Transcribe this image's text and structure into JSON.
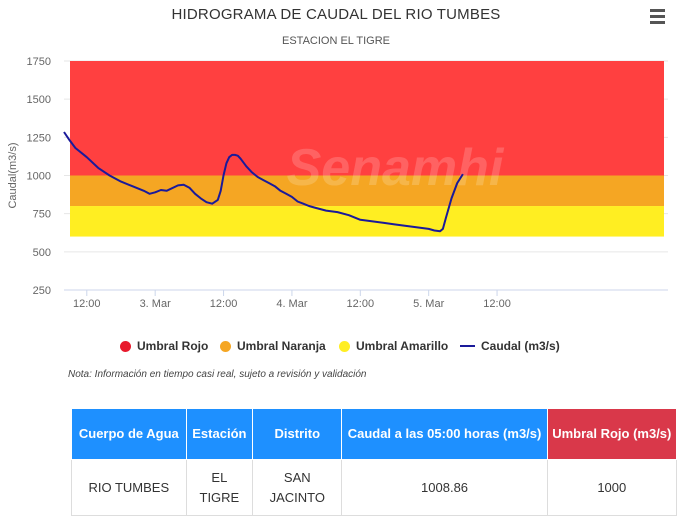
{
  "chart_data": {
    "type": "line",
    "title": "HIDROGRAMA DE CAUDAL DEL RIO TUMBES",
    "subtitle": "ESTACION EL TIGRE",
    "ylabel": "Caudal(m3/s)",
    "xlabel": "",
    "ylim": [
      250,
      1750
    ],
    "yticks": [
      250,
      500,
      750,
      1000,
      1250,
      1500,
      1750
    ],
    "x_tick_labels": [
      "12:00",
      "3. Mar",
      "12:00",
      "4. Mar",
      "12:00",
      "5. Mar",
      "12:00"
    ],
    "x_tick_hours": [
      12,
      24,
      36,
      48,
      60,
      72,
      84
    ],
    "xlim_hours": [
      8,
      114
    ],
    "grid": true,
    "legend_position": "bottom",
    "thresholds": [
      {
        "name": "Umbral Rojo",
        "from": 1000,
        "to": 1750,
        "color": "#ff4040"
      },
      {
        "name": "Umbral Naranja",
        "from": 800,
        "to": 1000,
        "color": "#f5a623"
      },
      {
        "name": "Umbral Amarillo",
        "from": 600,
        "to": 800,
        "color": "#ffee22"
      }
    ],
    "series": [
      {
        "name": "Caudal (m3/s)",
        "color": "#1a1a9a",
        "x_hours": [
          8,
          9,
          10,
          12,
          14,
          16,
          18,
          20,
          22,
          23,
          24,
          25,
          26,
          28,
          29,
          30,
          31,
          32,
          33,
          34,
          35,
          35.5,
          36,
          36.5,
          37,
          37.5,
          38,
          38.5,
          39,
          40,
          41,
          42,
          43,
          44,
          45,
          46,
          47,
          48,
          49,
          50,
          51,
          52,
          54,
          56,
          58,
          60,
          62,
          64,
          66,
          68,
          70,
          72,
          73,
          74,
          74.5,
          75,
          76,
          77,
          78
        ],
        "values": [
          1285,
          1230,
          1180,
          1120,
          1050,
          1000,
          960,
          930,
          900,
          880,
          890,
          905,
          900,
          935,
          940,
          920,
          880,
          850,
          825,
          815,
          840,
          900,
          1000,
          1080,
          1120,
          1135,
          1135,
          1130,
          1110,
          1060,
          1020,
          990,
          970,
          950,
          930,
          900,
          880,
          860,
          830,
          815,
          800,
          790,
          770,
          760,
          740,
          710,
          700,
          690,
          680,
          670,
          660,
          650,
          640,
          635,
          650,
          720,
          850,
          950,
          1008.86
        ]
      }
    ]
  },
  "menu_icon": "hamburger-menu-icon",
  "legend": [
    {
      "label": "Umbral Rojo",
      "color": "#e8192c",
      "kind": "dot"
    },
    {
      "label": "Umbral Naranja",
      "color": "#f5a623",
      "kind": "dot"
    },
    {
      "label": "Umbral Amarillo",
      "color": "#ffee22",
      "kind": "dot"
    },
    {
      "label": "Caudal (m3/s)",
      "color": "#1a1a9a",
      "kind": "line"
    }
  ],
  "note": "Nota: Información en tiempo casi real, sujeto a revisión y validación",
  "table": {
    "headers": [
      "Cuerpo de Agua",
      "Estación",
      "Distrito",
      "Caudal a las 05:00 horas (m3/s)",
      "Umbral Rojo (m3/s)"
    ],
    "row": [
      "RIO TUMBES",
      "EL TIGRE",
      "SAN JACINTO",
      "1008.86",
      "1000"
    ]
  }
}
